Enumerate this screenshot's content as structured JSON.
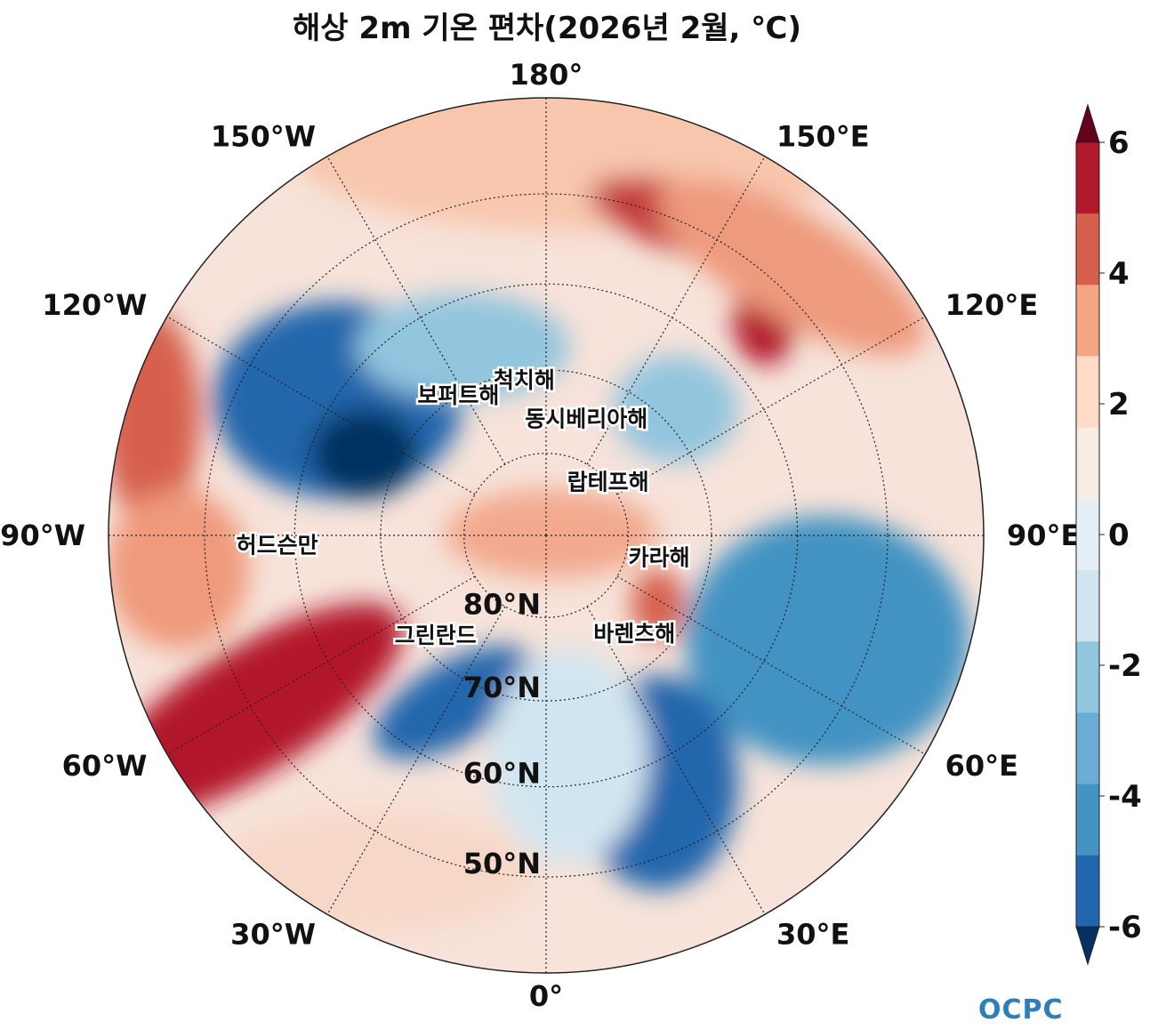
{
  "title": "해상 2m 기온 편차(2026년 2월, ℃)",
  "longitude_labels": [
    {
      "text": "180°",
      "deg": 180
    },
    {
      "text": "150°E",
      "deg": 150
    },
    {
      "text": "120°E",
      "deg": 120
    },
    {
      "text": "90°E",
      "deg": 90
    },
    {
      "text": "60°E",
      "deg": 60
    },
    {
      "text": "30°E",
      "deg": 30
    },
    {
      "text": "0°",
      "deg": 0
    },
    {
      "text": "30°W",
      "deg": -30
    },
    {
      "text": "60°W",
      "deg": -60
    },
    {
      "text": "90°W",
      "deg": -90
    },
    {
      "text": "120°W",
      "deg": -120
    },
    {
      "text": "150°W",
      "deg": -150
    }
  ],
  "latitude_labels": [
    {
      "text": "80°N",
      "lat": 80
    },
    {
      "text": "70°N",
      "lat": 70
    },
    {
      "text": "60°N",
      "lat": 60
    },
    {
      "text": "50°N",
      "lat": 50
    }
  ],
  "sea_labels": [
    {
      "text": "척치해",
      "lat": 71,
      "lon": -172
    },
    {
      "text": "동시베리아해",
      "lat": 75,
      "lon": 161
    },
    {
      "text": "보퍼트해",
      "lat": 70,
      "lon": -148
    },
    {
      "text": "랍테프해",
      "lat": 80,
      "lon": 131
    },
    {
      "text": "허드슨만",
      "lat": 58,
      "lon": -88
    },
    {
      "text": "카라해",
      "lat": 76,
      "lon": 79
    },
    {
      "text": "그린란드",
      "lat": 72,
      "lon": -48
    },
    {
      "text": "바렌츠해",
      "lat": 74,
      "lon": 42
    }
  ],
  "colorbar": {
    "ticks": [
      "6",
      "4",
      "2",
      "0",
      "-2",
      "-4",
      "-6"
    ],
    "colors": [
      "#67001f",
      "#b2182b",
      "#d6604d",
      "#f4a582",
      "#fddbc7",
      "#f7ede6",
      "#e6eff6",
      "#d1e5f0",
      "#92c5de",
      "#6aaed6",
      "#4393c3",
      "#2166ac",
      "#053061"
    ]
  },
  "logo": "OCPC"
}
